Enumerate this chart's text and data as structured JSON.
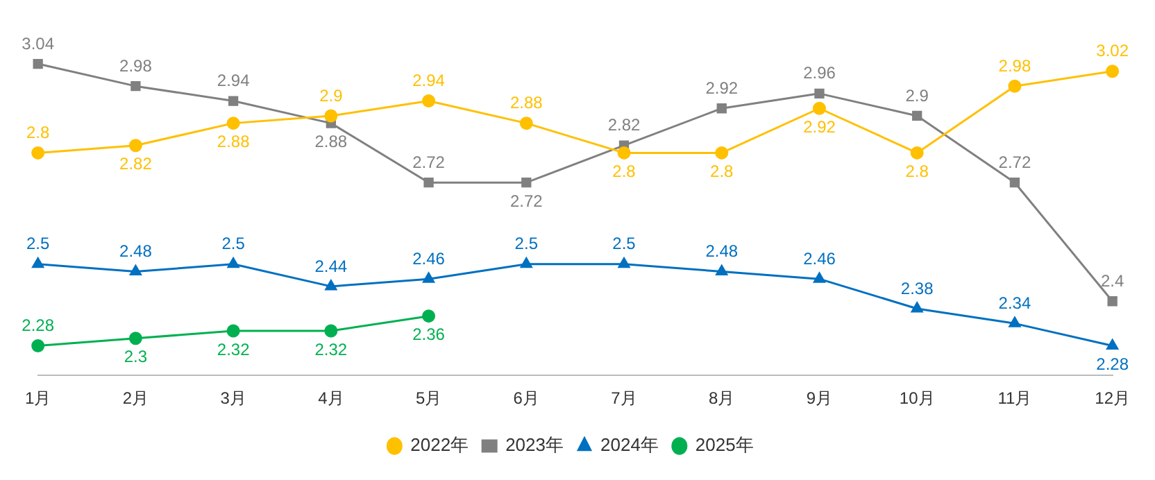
{
  "chart_data": {
    "type": "line",
    "categories": [
      "1月",
      "2月",
      "3月",
      "4月",
      "5月",
      "6月",
      "7月",
      "8月",
      "9月",
      "10月",
      "11月",
      "12月"
    ],
    "series": [
      {
        "name": "2022年",
        "color": "#ffc000",
        "marker": "circle",
        "values": [
          2.8,
          2.82,
          2.88,
          2.9,
          2.94,
          2.88,
          2.8,
          2.8,
          2.92,
          2.8,
          2.98,
          3.02
        ]
      },
      {
        "name": "2023年",
        "color": "#808080",
        "marker": "square",
        "values": [
          3.04,
          2.98,
          2.94,
          2.88,
          2.72,
          2.72,
          2.82,
          2.92,
          2.96,
          2.9,
          2.72,
          2.4
        ]
      },
      {
        "name": "2024年",
        "color": "#0070c0",
        "marker": "triangle",
        "values": [
          2.5,
          2.48,
          2.5,
          2.44,
          2.46,
          2.5,
          2.5,
          2.48,
          2.46,
          2.38,
          2.34,
          2.28
        ]
      },
      {
        "name": "2025年",
        "color": "#00b050",
        "marker": "circle",
        "values": [
          2.28,
          2.3,
          2.32,
          2.32,
          2.36,
          null,
          null,
          null,
          null,
          null,
          null,
          null
        ]
      }
    ],
    "data_labels": true,
    "legend": "bottom",
    "grid": false
  }
}
